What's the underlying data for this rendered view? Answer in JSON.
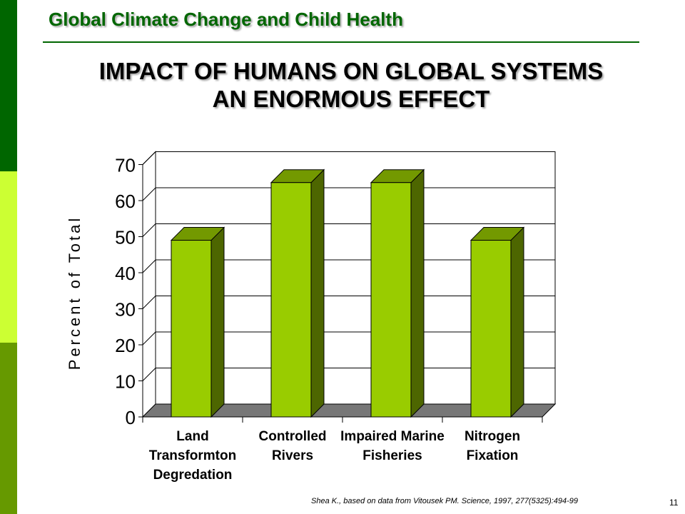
{
  "header": {
    "title": "Global Climate Change and Child Health"
  },
  "slide": {
    "title_line1": "IMPACT OF HUMANS ON GLOBAL SYSTEMS",
    "title_line2": "AN ENORMOUS EFFECT"
  },
  "colors": {
    "sidebar_top": "#006600",
    "sidebar_mid": "#ccff33",
    "sidebar_bottom": "#669900",
    "header_text": "#006600",
    "bar_front": "#99cc00",
    "bar_side": "#4d6600",
    "bar_top": "#739900",
    "floor": "#777777"
  },
  "chart_data": {
    "type": "bar",
    "title": "",
    "xlabel": "",
    "ylabel": "Percent of Total",
    "categories": [
      [
        "Land",
        "Transformton",
        "Degredation"
      ],
      [
        "Controlled",
        "Rivers"
      ],
      [
        "Impaired Marine",
        "Fisheries"
      ],
      [
        "Nitrogen",
        "Fixation"
      ]
    ],
    "values": [
      49,
      65,
      65,
      49
    ],
    "ylim": [
      0,
      70
    ],
    "yticks": [
      0,
      10,
      20,
      30,
      40,
      50,
      60,
      70
    ],
    "grid": true,
    "legend": "none"
  },
  "footer": {
    "citation": "Shea K., based on data from Vitousek PM. Science, 1997, 277(5325):494-99",
    "page_number": "11"
  }
}
